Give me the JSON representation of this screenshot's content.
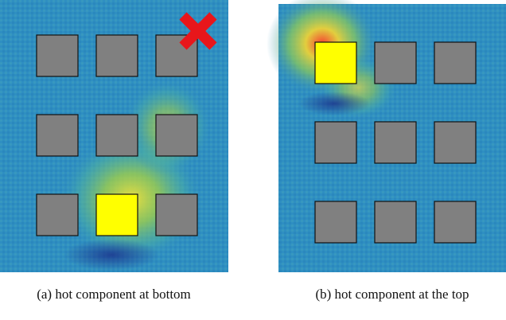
{
  "panels": [
    {
      "caption": "(a) hot component at bottom"
    },
    {
      "caption": "(b) hot component at the top"
    }
  ]
}
